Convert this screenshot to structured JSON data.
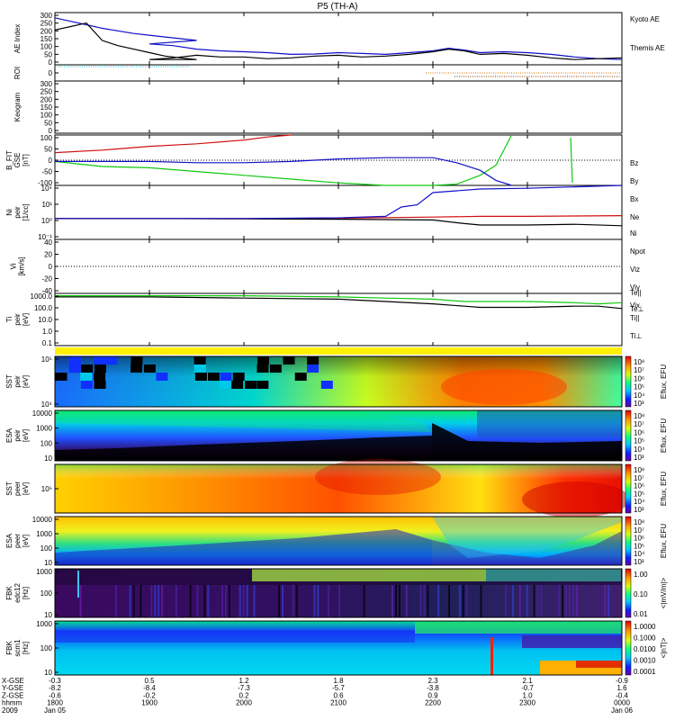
{
  "title": "P5 (TH-A)",
  "colors": {
    "blue": "#1010c8",
    "black": "#000000",
    "red": "#d01010",
    "green": "#10c810",
    "cyan": "#00c8d8",
    "orange": "#d07000",
    "frame": "#000000"
  },
  "chart_data": [
    {
      "type": "line",
      "panel": "ae",
      "ylabel": "AE Index",
      "ylim": [
        0,
        300
      ],
      "yticks": [
        "300",
        "250",
        "200",
        "150",
        "100",
        "50",
        "0"
      ],
      "xlim": [
        1800,
        2400
      ],
      "series": [
        {
          "name": "Kyoto AE",
          "color": "#1010c8",
          "x": [
            1800,
            1810,
            1820,
            1830,
            1840,
            1850,
            1860,
            1870,
            1880,
            1890,
            1900,
            1915,
            1930,
            1945,
            2000,
            2015,
            2030,
            2045,
            2100,
            2115,
            2130,
            2145,
            2200,
            2210,
            2220,
            2230,
            2245,
            2300,
            2315,
            2330,
            2345,
            2400
          ],
          "y": [
            270,
            250,
            230,
            210,
            195,
            180,
            170,
            160,
            150,
            140,
            120,
            110,
            90,
            80,
            75,
            70,
            60,
            62,
            70,
            65,
            60,
            70,
            80,
            95,
            85,
            70,
            75,
            70,
            60,
            45,
            35,
            30
          ]
        },
        {
          "name": "Themis AE",
          "color": "#000000",
          "x": [
            1800,
            1810,
            1820,
            1830,
            1840,
            1850,
            1860,
            1870,
            1880,
            1890,
            1900,
            1915,
            1930,
            1945,
            2000,
            2015,
            2030,
            2045,
            2100,
            2115,
            2130,
            2145,
            2200,
            2210,
            2220,
            2230,
            2245,
            2300,
            2315,
            2330,
            2345,
            2400
          ],
          "y": [
            200,
            220,
            240,
            140,
            110,
            90,
            70,
            50,
            40,
            30,
            30,
            40,
            55,
            45,
            45,
            35,
            40,
            50,
            55,
            45,
            50,
            60,
            75,
            90,
            80,
            60,
            65,
            55,
            40,
            30,
            35,
            40
          ]
        }
      ]
    },
    {
      "type": "line",
      "panel": "roi",
      "ylabel": "ROI",
      "ylim": [
        0,
        1
      ],
      "yticks": [
        "0"
      ]
    },
    {
      "type": "heatmap",
      "panel": "keogram",
      "ylabel": "Keogram",
      "ylim": [
        0,
        300
      ],
      "yticks": [
        "300",
        "250",
        "200",
        "150",
        "100",
        "50",
        "0"
      ]
    },
    {
      "type": "line",
      "panel": "bfit",
      "ylabel": "B_FIT GSE [nT]",
      "ylim": [
        -100,
        100
      ],
      "yticks": [
        "100",
        "50",
        "0",
        "-50",
        "-100"
      ],
      "xlim": [
        1800,
        2400
      ],
      "series": [
        {
          "name": "Bz",
          "color": "#d01010",
          "x": [
            1800,
            1830,
            1900,
            1930,
            2000,
            2015,
            2030
          ],
          "y": [
            30,
            40,
            55,
            65,
            80,
            92,
            100
          ]
        },
        {
          "name": "By",
          "color": "#10c810",
          "x": [
            1800,
            1830,
            1900,
            1930,
            2000,
            2030,
            2100,
            2130,
            2200,
            2215,
            2230,
            2240,
            2245,
            2250
          ],
          "y": [
            -5,
            -25,
            -30,
            -45,
            -60,
            -75,
            -90,
            -100,
            -100,
            -95,
            -60,
            -20,
            40,
            100
          ]
        },
        {
          "name": "Bx",
          "color": "#1010c8",
          "x": [
            1800,
            1830,
            1900,
            1930,
            2000,
            2030,
            2100,
            2130,
            2200,
            2215,
            2230,
            2240,
            2250
          ],
          "y": [
            -5,
            -5,
            -5,
            -10,
            -10,
            -5,
            5,
            10,
            10,
            -10,
            -40,
            -80,
            -100
          ]
        }
      ]
    },
    {
      "type": "line",
      "panel": "ni",
      "ylabel": "Ni peir [1/cc]",
      "ylim": [
        -3,
        4.5
      ],
      "yticks": [
        "10⁴",
        "10¹",
        "10⁰",
        "10⁻¹"
      ],
      "xlim": [
        1800,
        2400
      ],
      "series": [
        {
          "name": "Ne",
          "color": "#d01010",
          "x": [
            1800,
            1900,
            2000,
            2100,
            2200,
            2230,
            2300,
            2330,
            2400
          ],
          "y": [
            -0.1,
            -0.1,
            -0.1,
            -0.05,
            0.1,
            0.2,
            0.2,
            0.25,
            0.3
          ]
        },
        {
          "name": "Ni",
          "color": "#000000",
          "x": [
            1800,
            1900,
            2000,
            2100,
            2200,
            2220,
            2230,
            2300,
            2330,
            2400
          ],
          "y": [
            -0.1,
            -0.1,
            -0.15,
            -0.2,
            -0.3,
            -0.8,
            -1.0,
            -1.0,
            -0.9,
            -1.1
          ]
        },
        {
          "name": "Npot",
          "color": "#1010c8",
          "x": [
            1800,
            1900,
            2000,
            2100,
            2130,
            2140,
            2150,
            2200,
            2230,
            2300,
            2330,
            2400
          ],
          "y": [
            -0.1,
            -0.1,
            -0.1,
            0,
            0.2,
            1.5,
            1.8,
            3.5,
            4.0,
            4.1,
            4.3,
            4.5
          ]
        }
      ]
    },
    {
      "type": "line",
      "panel": "vi",
      "ylabel": "Vi [km/s]",
      "ylim": [
        -50,
        50
      ],
      "yticks": [
        "40",
        "20",
        "0",
        "-20",
        "-40"
      ],
      "series": [
        {
          "name": "Viz",
          "color": "#d01010"
        },
        {
          "name": "Viy",
          "color": "#10c810"
        },
        {
          "name": "Vix",
          "color": "#1010c8"
        }
      ]
    },
    {
      "type": "line",
      "panel": "ti",
      "ylabel": "Ti peir [eV]",
      "ylim": [
        -1,
        3.5
      ],
      "yticks": [
        "1000.0",
        "100.0",
        "10.0",
        "1.0",
        "0.1"
      ],
      "xlim": [
        1800,
        2400
      ],
      "series": [
        {
          "name": "Te||",
          "color": "#000000",
          "x": [
            1800,
            1900,
            2000,
            2100,
            2130,
            2200,
            2220,
            2230,
            2300,
            2330,
            2345,
            2400
          ],
          "y": [
            3.2,
            3.2,
            3.1,
            3.0,
            2.8,
            2.6,
            2.4,
            2.3,
            2.3,
            2.4,
            2.4,
            2.2
          ]
        },
        {
          "name": "Te⊥",
          "color": "#d01010"
        },
        {
          "name": "Ti||",
          "color": "#10c810",
          "x": [
            1800,
            1900,
            2000,
            2100,
            2130,
            2200,
            2220,
            2230,
            2300,
            2330,
            2345,
            2400
          ],
          "y": [
            3.3,
            3.3,
            3.3,
            3.2,
            3.1,
            3.0,
            2.8,
            2.8,
            2.8,
            2.7,
            2.6,
            2.7
          ]
        },
        {
          "name": "Ti⊥",
          "color": "#1010c8"
        }
      ]
    },
    {
      "type": "heatmap",
      "panel": "sst_i",
      "ylabel": "SST peir [eV]",
      "yticks": [
        "10⁵",
        "10⁴"
      ],
      "colorbar": {
        "label": "Eflux, EFU",
        "ticks": [
          "10⁸",
          "10⁷",
          "10⁶",
          "10⁵",
          "10⁴",
          "10³"
        ]
      }
    },
    {
      "type": "heatmap",
      "panel": "esa_i",
      "ylabel": "ESA peir [eV]",
      "yticks": [
        "10000",
        "1000",
        "100",
        "10"
      ],
      "colorbar": {
        "label": "Eflux, EFU",
        "ticks": [
          "10⁸",
          "10⁷",
          "10⁶",
          "10⁵",
          "10⁴",
          "10³"
        ]
      }
    },
    {
      "type": "heatmap",
      "panel": "sst_e",
      "ylabel": "SST peer [eV]",
      "yticks": [
        "10⁵"
      ],
      "colorbar": {
        "label": "Eflux, EFU",
        "ticks": [
          "10⁸",
          "10⁷",
          "10⁶",
          "10⁵",
          "10⁴",
          "10³"
        ]
      }
    },
    {
      "type": "heatmap",
      "panel": "esa_e",
      "ylabel": "ESA peer [eV]",
      "yticks": [
        "10000",
        "1000",
        "100",
        "10"
      ],
      "colorbar": {
        "label": "Eflux, EFU",
        "ticks": [
          "10⁸",
          "10⁷",
          "10⁶",
          "10⁵",
          "10⁴",
          "10³"
        ]
      }
    },
    {
      "type": "heatmap",
      "panel": "fbk_edc",
      "ylabel": "FBK edc12 [Hz]",
      "yticks": [
        "1000",
        "100",
        "10"
      ],
      "colorbar": {
        "label": "<|mV/m|>",
        "ticks": [
          "1.00",
          "0.10",
          "0.01"
        ]
      }
    },
    {
      "type": "heatmap",
      "panel": "fbk_scm",
      "ylabel": "FBK scm1 [Hz]",
      "yticks": [
        "1000",
        "100",
        "10"
      ],
      "colorbar": {
        "label": "<|nT|>",
        "ticks": [
          "1.0000",
          "0.1000",
          "0.0100",
          "0.0010",
          "0.0001"
        ]
      }
    }
  ],
  "x_axis": {
    "row_labels": [
      "X-GSE",
      "Y-GSE",
      "Z-GSE",
      "hhmm",
      "2009"
    ],
    "ticks": [
      {
        "vals": [
          "-0.3",
          "-8.2",
          "-0.6",
          "1800",
          "Jan 05"
        ]
      },
      {
        "vals": [
          "0.5",
          "-8.4",
          "-0.2",
          "1900",
          ""
        ]
      },
      {
        "vals": [
          "1.2",
          "-7.3",
          "0.2",
          "2000",
          ""
        ]
      },
      {
        "vals": [
          "1.8",
          "-5.7",
          "0.6",
          "2100",
          ""
        ]
      },
      {
        "vals": [
          "2.3",
          "-3.8",
          "0.9",
          "2200",
          ""
        ]
      },
      {
        "vals": [
          "2.1",
          "-0.7",
          "1.0",
          "2300",
          ""
        ]
      },
      {
        "vals": [
          "-0.9",
          "1.6",
          "-0.4",
          "0000",
          "Jan 06"
        ]
      }
    ]
  }
}
